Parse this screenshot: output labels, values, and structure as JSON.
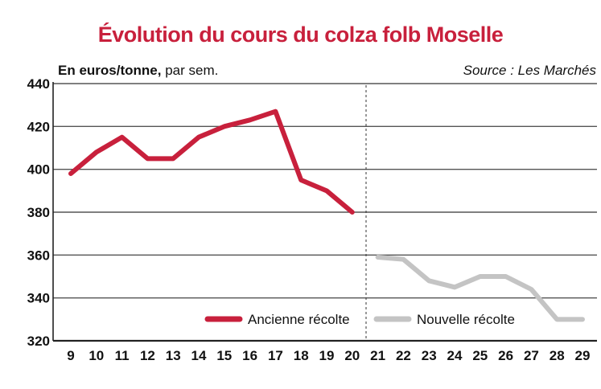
{
  "header": {
    "title": "Évolution du cours du colza folb Moselle",
    "unit_bold": "En euros/tonne,",
    "unit_rest": " par sem.",
    "source": "Source : Les Marchés"
  },
  "colors": {
    "ancienne": "#c8203c",
    "nouvelle": "#c4c4c4",
    "title": "#c8203c",
    "grid": "#555555"
  },
  "chart_data": {
    "type": "line",
    "title": "Évolution du cours du colza folb Moselle",
    "ylabel": "En euros/tonne, par sem.",
    "xlabel": "",
    "ylim": [
      320,
      440
    ],
    "yticks": [
      320,
      340,
      360,
      380,
      400,
      420,
      440
    ],
    "xticks": [
      9,
      10,
      11,
      12,
      13,
      14,
      15,
      16,
      17,
      18,
      19,
      20,
      21,
      22,
      23,
      24,
      25,
      26,
      27,
      28,
      29
    ],
    "grid": true,
    "series": [
      {
        "name": "Ancienne récolte",
        "x": [
          9,
          10,
          11,
          12,
          13,
          14,
          15,
          16,
          17,
          18,
          19,
          20
        ],
        "values": [
          398,
          408,
          415,
          405,
          405,
          415,
          420,
          423,
          427,
          395,
          390,
          380
        ]
      },
      {
        "name": "Nouvelle récolte",
        "x": [
          21,
          22,
          23,
          24,
          25,
          26,
          27,
          28,
          29
        ],
        "values": [
          359,
          358,
          348,
          345,
          350,
          350,
          344,
          330,
          330
        ]
      }
    ]
  }
}
